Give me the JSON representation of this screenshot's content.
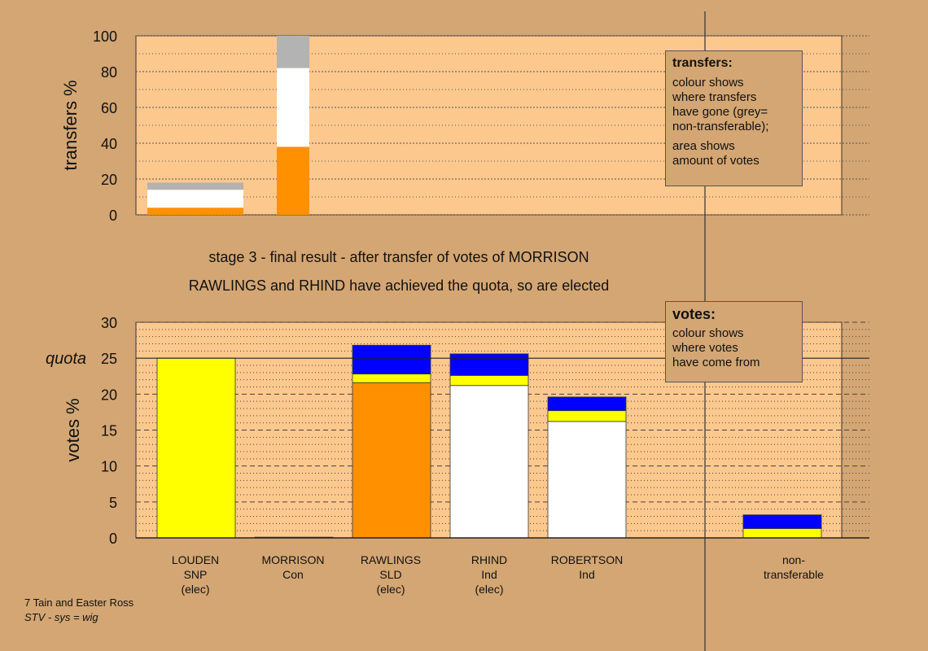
{
  "colors": {
    "background": "#d4a673",
    "plot_area": "#fcc88e",
    "orange": "#ff9100",
    "white": "#ffffff",
    "grey": "#b3b3b3",
    "yellow": "#ffff00",
    "blue": "#0000ff"
  },
  "captions": {
    "line1": "stage 3 - final result - after transfer of votes of MORRISON",
    "line2": "RAWLINGS and RHIND have achieved the quota, so are elected"
  },
  "legend_transfers": {
    "title": "transfers:",
    "line1": "colour shows\nwhere transfers\nhave gone (grey=\nnon-transferable);",
    "line2": "area shows\namount of votes"
  },
  "legend_votes": {
    "title": "votes:",
    "line1": "colour shows\nwhere votes\nhave come from"
  },
  "footer": {
    "line1": "7 Tain and Easter Ross",
    "line2": "STV - sys = wig"
  },
  "chart_data": [
    {
      "type": "bar",
      "stacked": true,
      "ylabel": "transfers %",
      "ylim": [
        0,
        100
      ],
      "yticks": [
        0,
        20,
        40,
        60,
        80,
        100
      ],
      "bars": [
        {
          "segments": [
            {
              "color": "orange",
              "value": 4
            },
            {
              "color": "white",
              "value": 10
            },
            {
              "color": "grey",
              "value": 4
            }
          ]
        },
        {
          "segments": [
            {
              "color": "orange",
              "value": 38
            },
            {
              "color": "white",
              "value": 44
            },
            {
              "color": "grey",
              "value": 18
            }
          ]
        }
      ]
    },
    {
      "type": "bar",
      "stacked": true,
      "ylabel": "votes %",
      "ylim": [
        0,
        30
      ],
      "yticks": [
        0,
        5,
        10,
        15,
        20,
        25,
        30
      ],
      "quota": {
        "label": "quota",
        "value": 25
      },
      "categories": [
        {
          "lines": [
            "LOUDEN",
            "SNP",
            "(elec)"
          ]
        },
        {
          "lines": [
            "MORRISON",
            "Con"
          ]
        },
        {
          "lines": [
            "RAWLINGS",
            "SLD",
            "(elec)"
          ]
        },
        {
          "lines": [
            "RHIND",
            "Ind",
            "(elec)"
          ]
        },
        {
          "lines": [
            "ROBERTSON",
            "Ind"
          ]
        },
        {
          "lines": [
            "non-",
            "transferable"
          ]
        }
      ],
      "bars": [
        {
          "segments": [
            {
              "color": "yellow",
              "value": 25
            }
          ]
        },
        {
          "segments": [
            {
              "color": "orange",
              "value": 0.1
            }
          ]
        },
        {
          "segments": [
            {
              "color": "orange",
              "value": 21.6
            },
            {
              "color": "yellow",
              "value": 1.2
            },
            {
              "color": "blue",
              "value": 4.0
            }
          ]
        },
        {
          "segments": [
            {
              "color": "white",
              "value": 21.2
            },
            {
              "color": "yellow",
              "value": 1.4
            },
            {
              "color": "blue",
              "value": 3.0
            }
          ]
        },
        {
          "segments": [
            {
              "color": "white",
              "value": 16.2
            },
            {
              "color": "yellow",
              "value": 1.5
            },
            {
              "color": "blue",
              "value": 1.9
            }
          ]
        },
        {
          "segments": [
            {
              "color": "yellow",
              "value": 1.3
            },
            {
              "color": "blue",
              "value": 1.9
            }
          ]
        }
      ]
    }
  ]
}
